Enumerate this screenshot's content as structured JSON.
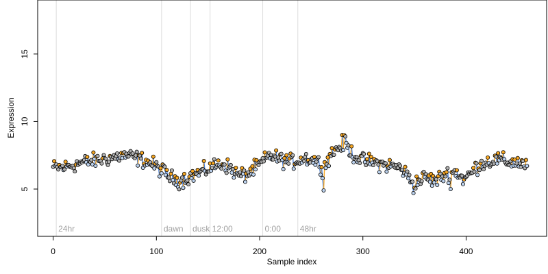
{
  "chart_data": {
    "type": "scatter",
    "title": "",
    "xlabel": "Sample index",
    "ylabel": "Expression",
    "xlim": [
      -15,
      478
    ],
    "ylim": [
      1.5,
      19
    ],
    "x_ticks": [
      0,
      100,
      200,
      300,
      400
    ],
    "y_ticks": [
      5,
      10,
      15
    ],
    "grid": false,
    "colors": {
      "point_fill_default": "#b0b0b0",
      "point_fill_up": "#f5a623",
      "point_fill_down": "#bcd2ee",
      "point_stroke": "#000000",
      "segment_up": "#f5a623",
      "segment_down": "#4a7fd4",
      "event_line": "#dcdcdc",
      "event_label": "#a0a0a0"
    },
    "event_markers": [
      {
        "x": 3,
        "label": "24hr"
      },
      {
        "x": 105,
        "label": "dawn"
      },
      {
        "x": 133,
        "label": "dusk"
      },
      {
        "x": 152,
        "label": "12:00"
      },
      {
        "x": 203,
        "label": "0:00"
      },
      {
        "x": 237,
        "label": "48hr"
      }
    ],
    "series_profile": [
      [
        0,
        6.6
      ],
      [
        10,
        6.6
      ],
      [
        20,
        6.8
      ],
      [
        30,
        7.0
      ],
      [
        40,
        7.1
      ],
      [
        55,
        7.3
      ],
      [
        70,
        7.5
      ],
      [
        85,
        7.2
      ],
      [
        95,
        6.9
      ],
      [
        105,
        6.4
      ],
      [
        115,
        5.8
      ],
      [
        122,
        5.6
      ],
      [
        135,
        6.0
      ],
      [
        145,
        6.3
      ],
      [
        155,
        6.7
      ],
      [
        165,
        6.9
      ],
      [
        172,
        6.5
      ],
      [
        180,
        6.0
      ],
      [
        188,
        6.1
      ],
      [
        200,
        6.8
      ],
      [
        210,
        7.5
      ],
      [
        220,
        7.2
      ],
      [
        230,
        7.0
      ],
      [
        245,
        7.3
      ],
      [
        255,
        7.1
      ],
      [
        262,
        6.5
      ],
      [
        268,
        7.5
      ],
      [
        275,
        8.0
      ],
      [
        282,
        8.4
      ],
      [
        290,
        7.6
      ],
      [
        300,
        7.1
      ],
      [
        310,
        7.0
      ],
      [
        320,
        6.8
      ],
      [
        330,
        6.7
      ],
      [
        338,
        6.5
      ],
      [
        345,
        5.8
      ],
      [
        352,
        5.5
      ],
      [
        360,
        5.9
      ],
      [
        370,
        5.6
      ],
      [
        380,
        6.1
      ],
      [
        390,
        6.3
      ],
      [
        398,
        5.7
      ],
      [
        405,
        6.2
      ],
      [
        412,
        6.8
      ],
      [
        420,
        7.0
      ],
      [
        430,
        7.2
      ],
      [
        440,
        7.0
      ],
      [
        450,
        7.0
      ],
      [
        460,
        6.7
      ]
    ],
    "outliers": [
      {
        "x": 262,
        "y": 4.9
      },
      {
        "x": 349,
        "y": 4.7
      },
      {
        "x": 385,
        "y": 5.0
      },
      {
        "x": 119,
        "y": 5.3
      },
      {
        "x": 280,
        "y": 9.0
      },
      {
        "x": 283,
        "y": 8.9
      }
    ],
    "n_points": 460
  }
}
